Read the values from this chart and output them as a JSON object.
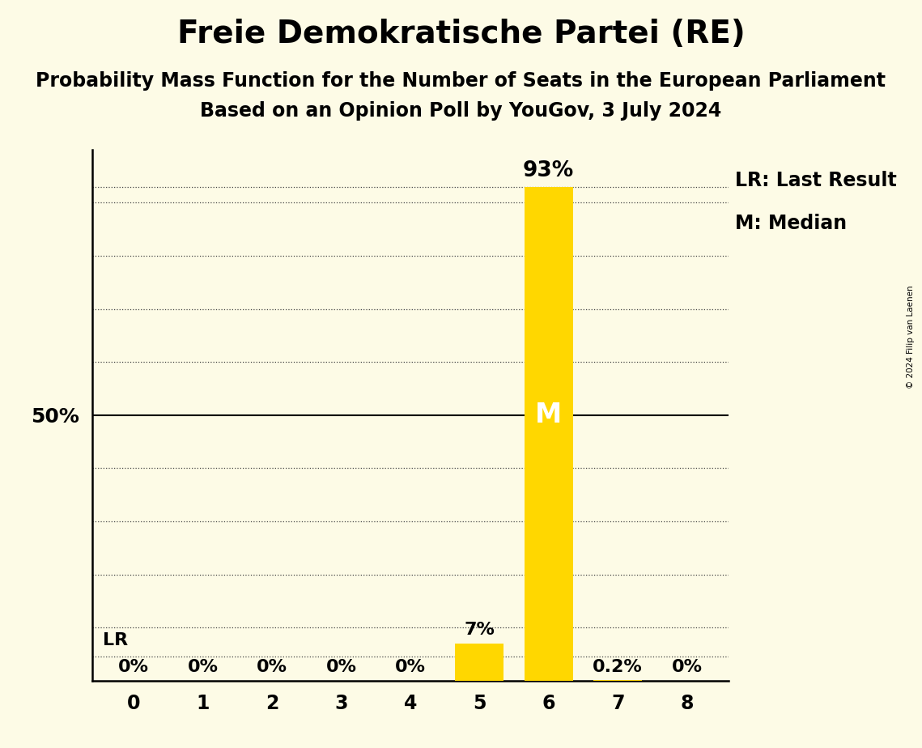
{
  "title": "Freie Demokratische Partei (RE)",
  "subtitle1": "Probability Mass Function for the Number of Seats in the European Parliament",
  "subtitle2": "Based on an Opinion Poll by YouGov, 3 July 2024",
  "copyright": "© 2024 Filip van Laenen",
  "categories": [
    0,
    1,
    2,
    3,
    4,
    5,
    6,
    7,
    8
  ],
  "values": [
    0.0,
    0.0,
    0.0,
    0.0,
    0.0,
    0.07,
    0.93,
    0.002,
    0.0
  ],
  "bar_labels": [
    "0%",
    "0%",
    "0%",
    "0%",
    "0%",
    "7%",
    "93%",
    "0.2%",
    "0%"
  ],
  "median_bar": 6,
  "lr_bar": 5,
  "lr_label": "LR",
  "median_label": "M",
  "legend_lr": "LR: Last Result",
  "legend_m": "M: Median",
  "ylim_max": 1.0,
  "ylabel_50": "50%",
  "background_color": "#FDFBE6",
  "bar_color": "#FFD700",
  "title_fontsize": 28,
  "subtitle_fontsize": 17,
  "bar_label_fontsize": 16,
  "tick_fontsize": 17,
  "legend_fontsize": 16,
  "lr_fontsize": 16,
  "median_fontsize": 24
}
